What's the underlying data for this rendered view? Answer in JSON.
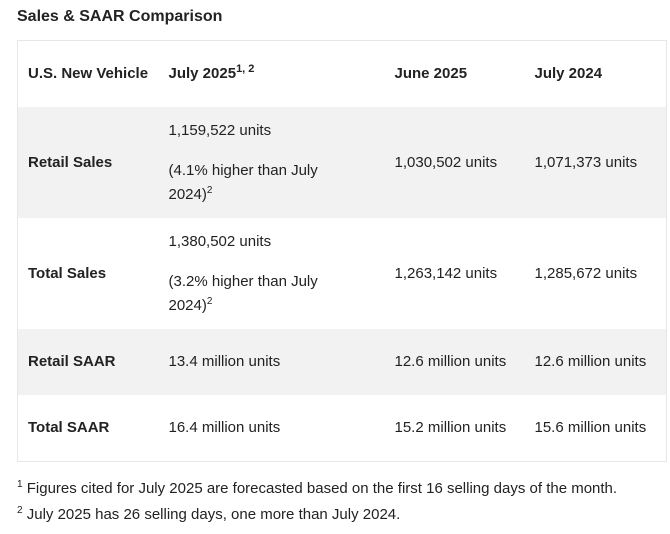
{
  "title": "Sales & SAAR Comparison",
  "table": {
    "header": [
      {
        "text": "U.S. New Vehicle"
      },
      {
        "text": "July 2025",
        "sup": "1, 2"
      },
      {
        "text": "June 2025"
      },
      {
        "text": "July 2024"
      }
    ],
    "rows": [
      {
        "label": "Retail Sales",
        "cells": [
          {
            "text": "1,159,522 units",
            "note": "(4.1% higher than July 2024)",
            "sup": "2"
          },
          {
            "text": "1,030,502 units"
          },
          {
            "text": "1,071,373 units"
          }
        ]
      },
      {
        "label": "Total Sales",
        "cells": [
          {
            "text": "1,380,502 units",
            "note": "(3.2% higher than July 2024)",
            "sup": "2"
          },
          {
            "text": "1,263,142 units"
          },
          {
            "text": "1,285,672 units"
          }
        ]
      },
      {
        "label": "Retail SAAR",
        "cells": [
          {
            "text": "13.4 million units"
          },
          {
            "text": "12.6 million units"
          },
          {
            "text": "12.6 million units"
          }
        ]
      },
      {
        "label": "Total SAAR",
        "cells": [
          {
            "text": "16.4 million units"
          },
          {
            "text": "15.2 million units"
          },
          {
            "text": "15.6 million units"
          }
        ]
      }
    ]
  },
  "footnotes": [
    {
      "mark": "1",
      "text": "Figures cited for July 2025 are forecasted based on the first 16 selling days of the month."
    },
    {
      "mark": "2",
      "text": "July 2025 has 26 selling days, one more than July 2024."
    }
  ]
}
